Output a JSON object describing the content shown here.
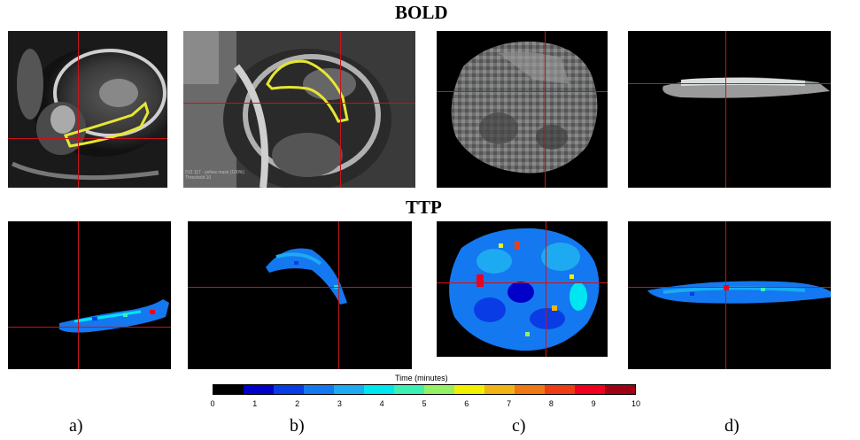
{
  "rows": {
    "bold_title": "BOLD",
    "ttp_title": "TTP"
  },
  "colorbar": {
    "title": "Time (minutes)",
    "ticks": [
      "0",
      "1",
      "2",
      "3",
      "4",
      "5",
      "6",
      "7",
      "8",
      "9",
      "10"
    ],
    "range": [
      0,
      10
    ],
    "colors": [
      "#000000",
      "#0000c8",
      "#0a3ce6",
      "#1478f0",
      "#1eaaf0",
      "#00e6f0",
      "#3cf0b4",
      "#96f064",
      "#f0f000",
      "#f0b414",
      "#f07814",
      "#f03c14",
      "#f0001e",
      "#a00014"
    ]
  },
  "captions": [
    "a)",
    "b)",
    "c)",
    "d)"
  ],
  "overlay": {
    "line1": "012 117 · yellow mask (100%)",
    "line2": "Threshold 10"
  },
  "colors": {
    "crosshair": "#c8141a",
    "roi_outline": "#e6e632"
  }
}
